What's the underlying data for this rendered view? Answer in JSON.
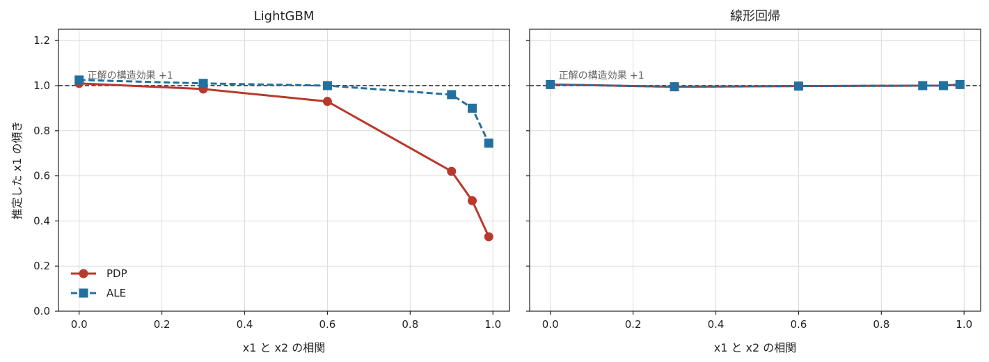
{
  "chart_data": [
    {
      "type": "line",
      "title": "LightGBM",
      "xlabel": "x1 と x2 の相関",
      "ylabel": "推定した x1 の傾き",
      "xlim": [
        -0.05,
        1.04
      ],
      "ylim": [
        0.0,
        1.25
      ],
      "xticks": [
        0.0,
        0.2,
        0.4,
        0.6,
        0.8,
        1.0
      ],
      "yticks": [
        0.0,
        0.2,
        0.4,
        0.6,
        0.8,
        1.0,
        1.2
      ],
      "xtick_labels": [
        "0.0",
        "0.2",
        "0.4",
        "0.6",
        "0.8",
        "1.0"
      ],
      "ytick_labels": [
        "0.0",
        "0.2",
        "0.4",
        "0.6",
        "0.8",
        "1.0",
        "1.2"
      ],
      "grid": true,
      "legend": "lower-left",
      "reference_line": {
        "y": 1.0,
        "label": "正解の構造効果 +1",
        "color": "#555555"
      },
      "x": [
        0.0,
        0.3,
        0.6,
        0.9,
        0.95,
        0.99
      ],
      "series": [
        {
          "name": "PDP",
          "values": [
            1.01,
            0.985,
            0.93,
            0.62,
            0.49,
            0.33
          ],
          "color": "#b9392c",
          "marker": "circle",
          "style": "solid"
        },
        {
          "name": "ALE",
          "values": [
            1.025,
            1.01,
            1.0,
            0.96,
            0.9,
            0.745
          ],
          "color": "#23709f",
          "marker": "square",
          "style": "dashed"
        }
      ]
    },
    {
      "type": "line",
      "title": "線形回帰",
      "xlabel": "x1 と x2 の相関",
      "ylabel": "",
      "xlim": [
        -0.05,
        1.04
      ],
      "ylim": [
        0.0,
        1.25
      ],
      "xticks": [
        0.0,
        0.2,
        0.4,
        0.6,
        0.8,
        1.0
      ],
      "yticks": [
        0.0,
        0.2,
        0.4,
        0.6,
        0.8,
        1.0,
        1.2
      ],
      "xtick_labels": [
        "0.0",
        "0.2",
        "0.4",
        "0.6",
        "0.8",
        "1.0"
      ],
      "ytick_labels": [],
      "grid": true,
      "reference_line": {
        "y": 1.0,
        "label": "正解の構造効果 +1",
        "color": "#555555"
      },
      "x": [
        0.0,
        0.3,
        0.6,
        0.9,
        0.95,
        0.99
      ],
      "series": [
        {
          "name": "PDP",
          "values": [
            1.005,
            0.995,
            0.998,
            1.0,
            1.0,
            1.005
          ],
          "color": "#b9392c",
          "marker": "circle",
          "style": "solid"
        },
        {
          "name": "ALE",
          "values": [
            1.005,
            0.995,
            0.998,
            1.0,
            1.0,
            1.005
          ],
          "color": "#23709f",
          "marker": "square",
          "style": "dashed"
        }
      ]
    }
  ]
}
